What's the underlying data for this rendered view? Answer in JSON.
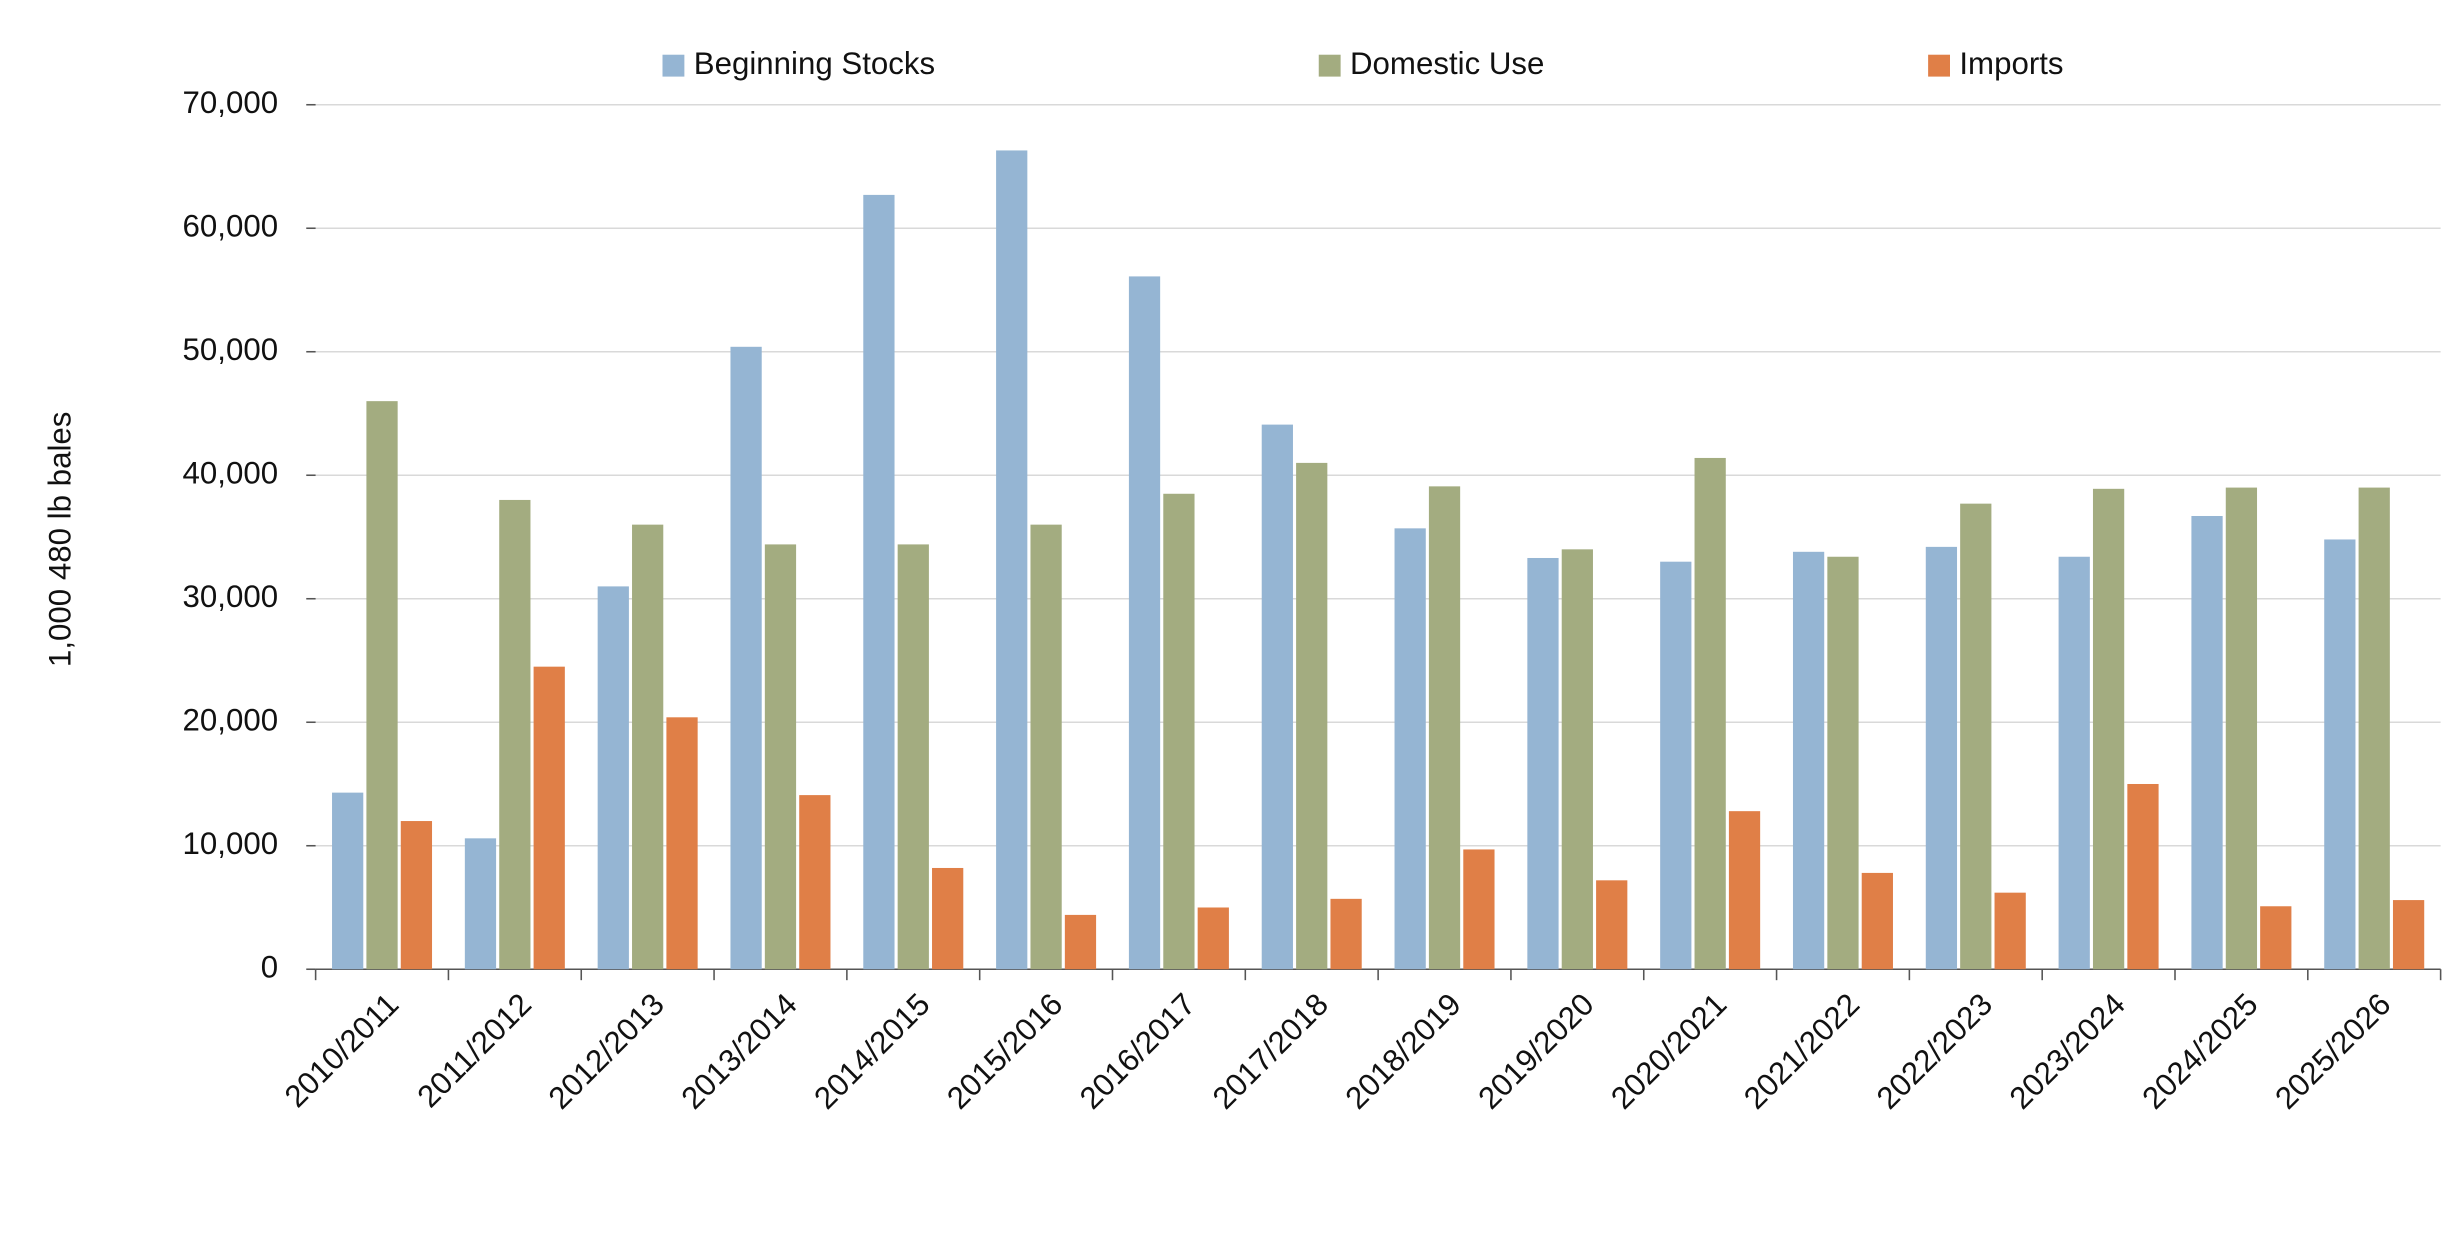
{
  "chart_data": {
    "type": "bar",
    "y_label": "1,000 480 lb bales",
    "categories": [
      "2010/2011",
      "2011/2012",
      "2012/2013",
      "2013/2014",
      "2014/2015",
      "2015/2016",
      "2016/2017",
      "2017/2018",
      "2018/2019",
      "2019/2020",
      "2020/2021",
      "2021/2022",
      "2022/2023",
      "2023/2024",
      "2024/2025",
      "2025/2026"
    ],
    "series": [
      {
        "name": "Beginning Stocks",
        "color": "#95b5d3",
        "values": [
          14300,
          10600,
          31000,
          50400,
          62700,
          66300,
          56100,
          44100,
          35700,
          33300,
          33000,
          33800,
          34200,
          33400,
          36700,
          34800
        ]
      },
      {
        "name": "Domestic Use",
        "color": "#a3ac80",
        "values": [
          46000,
          38000,
          36000,
          34400,
          34400,
          36000,
          38500,
          41000,
          39100,
          34000,
          41400,
          33400,
          37700,
          38900,
          39000,
          39000
        ]
      },
      {
        "name": "Imports",
        "color": "#e07f47",
        "values": [
          12000,
          24500,
          20400,
          14100,
          8200,
          4400,
          5000,
          5700,
          9700,
          7200,
          12800,
          7800,
          6200,
          15000,
          5100,
          5600
        ]
      }
    ],
    "ylim": [
      0,
      70000
    ],
    "yticks": [
      0,
      {
        "value": 10000,
        "label": "10,000"
      },
      {
        "value": 20000,
        "label": "20,000"
      },
      {
        "value": 30000,
        "label": "30,000"
      },
      {
        "value": 40000,
        "label": "40,000"
      },
      {
        "value": 50000,
        "label": "50,000"
      },
      {
        "value": 60000,
        "label": "60,000"
      },
      {
        "value": 70000,
        "label": "70,000"
      }
    ],
    "grid": true,
    "legend": "top"
  }
}
